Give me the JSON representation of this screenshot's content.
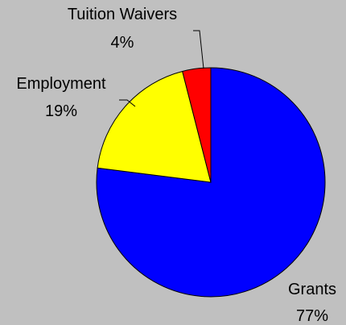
{
  "chart_data": {
    "type": "pie",
    "title": "",
    "legend": "none",
    "slices": [
      {
        "label": "Grants",
        "value": 77,
        "value_label": "77%",
        "color": "#0000ff"
      },
      {
        "label": "Employment",
        "value": 19,
        "value_label": "19%",
        "color": "#ffff00"
      },
      {
        "label": "Tuition Waivers",
        "value": 4,
        "value_label": "4%",
        "color": "#ff0000"
      }
    ],
    "background_color": "#c0c0c0",
    "outline_color": "#000000"
  }
}
